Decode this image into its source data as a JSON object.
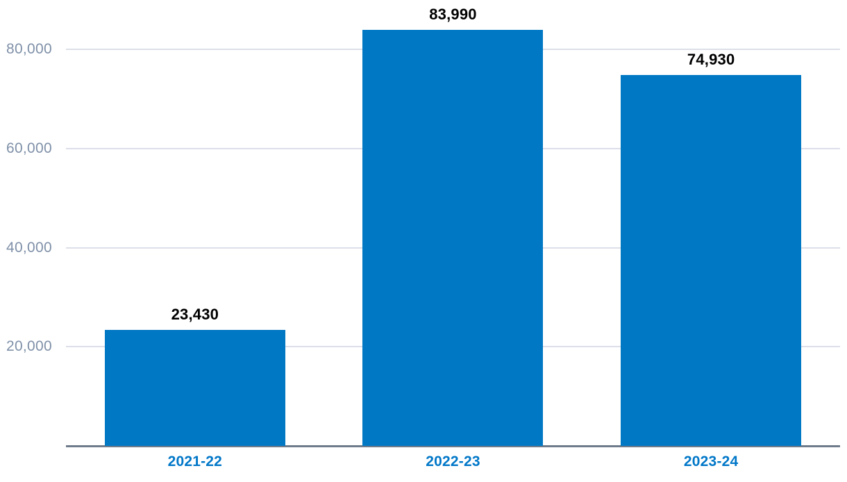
{
  "chart_data": {
    "type": "bar",
    "categories": [
      "2021-22",
      "2022-23",
      "2023-24"
    ],
    "values": [
      23430,
      83990,
      74930
    ],
    "value_labels": [
      "23,430",
      "83,990",
      "74,930"
    ],
    "title": "",
    "xlabel": "",
    "ylabel": "",
    "ylim": [
      0,
      90000
    ],
    "yticks": [
      20000,
      40000,
      60000,
      80000
    ],
    "ytick_labels": [
      "20,000",
      "40,000",
      "60,000",
      "80,000"
    ],
    "grid": true,
    "legend": false,
    "colors": {
      "bar": "#0078c4",
      "value_label": "#000000",
      "category_label": "#0077c8",
      "ytick_label": "#7f90a8",
      "gridline": "#dcdfe8",
      "axis_line": "#6e7b8a",
      "background": "#ffffff"
    }
  }
}
